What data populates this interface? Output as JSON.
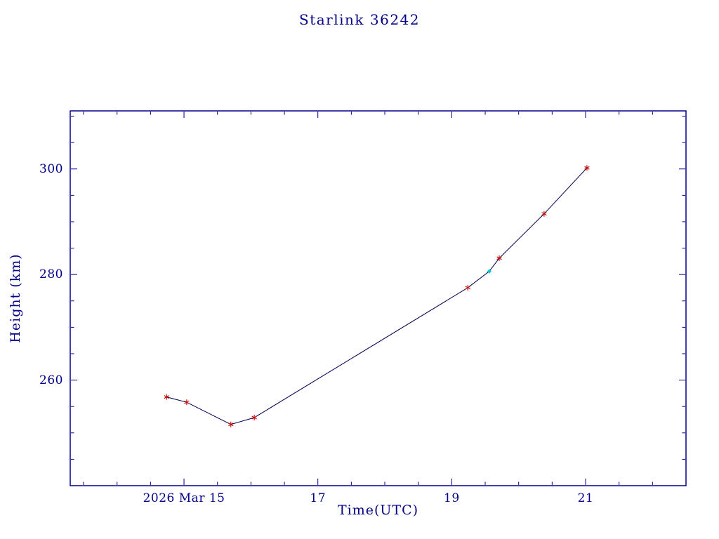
{
  "chart_data": {
    "type": "line",
    "title": "Starlink 36242",
    "xlabel": "Time(UTC)",
    "ylabel": "Height (km)",
    "xlim": [
      13.3,
      22.5
    ],
    "ylim": [
      240,
      311
    ],
    "grid": false,
    "legend": "none",
    "x_ticks": [
      {
        "value": 15,
        "label": "2026 Mar 15"
      },
      {
        "value": 17,
        "label": "17"
      },
      {
        "value": 19,
        "label": "19"
      },
      {
        "value": 21,
        "label": "21"
      }
    ],
    "x_minor_step": 0.5,
    "y_ticks": [
      {
        "value": 260,
        "label": "260"
      },
      {
        "value": 280,
        "label": "280"
      },
      {
        "value": 300,
        "label": "300"
      }
    ],
    "y_minor_step": 5,
    "colors": {
      "text": "#00008b",
      "axis": "#00008b",
      "line": "#000050",
      "marker": "#c40000",
      "special_marker": "#00c2cc"
    },
    "series": [
      {
        "name": "height-track",
        "points": [
          {
            "x": 14.74,
            "y": 256.8,
            "marker": "asterisk"
          },
          {
            "x": 15.04,
            "y": 255.8,
            "marker": "asterisk"
          },
          {
            "x": 15.7,
            "y": 251.6,
            "marker": "asterisk"
          },
          {
            "x": 16.05,
            "y": 252.9,
            "marker": "asterisk"
          },
          {
            "x": 19.24,
            "y": 277.5,
            "marker": "asterisk"
          },
          {
            "x": 19.56,
            "y": 280.6,
            "marker": "diamond"
          },
          {
            "x": 19.71,
            "y": 283.1,
            "marker": "asterisk"
          },
          {
            "x": 20.38,
            "y": 291.5,
            "marker": "asterisk"
          },
          {
            "x": 21.02,
            "y": 300.2,
            "marker": "asterisk"
          }
        ]
      }
    ]
  }
}
